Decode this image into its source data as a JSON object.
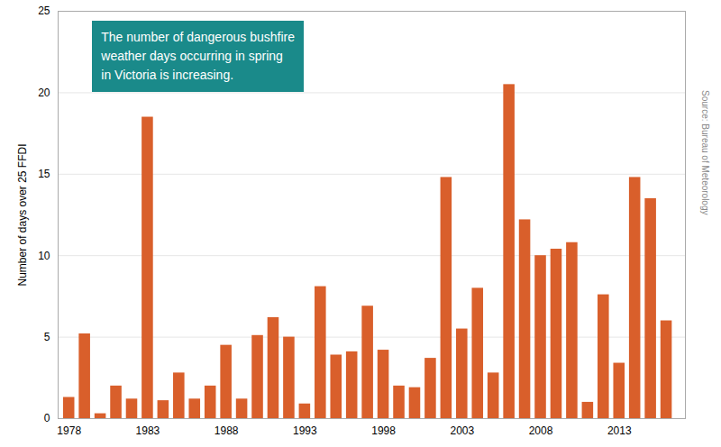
{
  "chart_data": {
    "type": "bar",
    "x": [
      1978,
      1979,
      1980,
      1981,
      1982,
      1983,
      1984,
      1985,
      1986,
      1987,
      1988,
      1989,
      1990,
      1991,
      1992,
      1993,
      1994,
      1995,
      1996,
      1997,
      1998,
      1999,
      2000,
      2001,
      2002,
      2003,
      2004,
      2005,
      2006,
      2007,
      2008,
      2009,
      2010,
      2011,
      2012,
      2013,
      2014,
      2015,
      2016
    ],
    "values": [
      1.3,
      5.2,
      0.3,
      2.0,
      1.2,
      18.5,
      1.1,
      2.8,
      1.2,
      2.0,
      4.5,
      1.2,
      5.1,
      6.2,
      5.0,
      0.9,
      8.1,
      3.9,
      4.1,
      6.9,
      4.2,
      2.0,
      1.9,
      3.7,
      14.8,
      5.5,
      8.0,
      2.8,
      20.5,
      12.2,
      10.0,
      10.4,
      10.8,
      1.0,
      7.6,
      3.4,
      14.8,
      13.5,
      6.0
    ],
    "color": "#d95f2b",
    "ylabel": "Number of days over 25 FFDI",
    "xlim": [
      1977.3,
      2017.2
    ],
    "xticks": [
      1978,
      1983,
      1988,
      1993,
      1998,
      2003,
      2008,
      2013
    ],
    "ylim": [
      0,
      25
    ],
    "yticks": [
      0,
      5,
      10,
      15,
      20,
      25
    ],
    "grid": true,
    "annotation": "The number of dangerous bushfire\nweather days occurring in spring\nin Victoria is increasing.",
    "source": "Source: Bureau of Meteorology"
  }
}
